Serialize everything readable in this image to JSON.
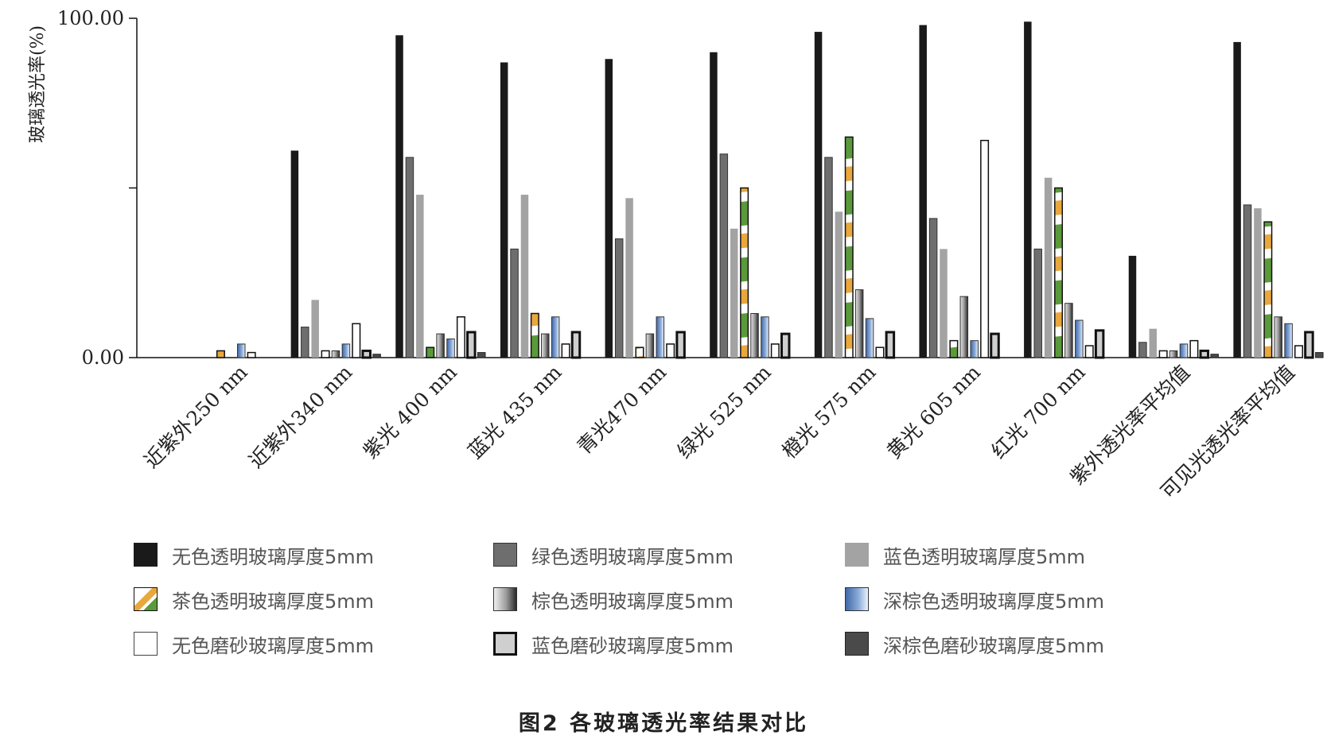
{
  "chart_data": {
    "type": "bar",
    "title": "",
    "xlabel": "",
    "ylabel": "玻璃透光率(%)",
    "ylim": [
      0,
      100
    ],
    "ytick_labels": [
      "0.00",
      "100.00"
    ],
    "grid": false,
    "categories": [
      "近紫外250 nm",
      "近紫外340 nm",
      "紫光 400 nm",
      "蓝光 435 nm",
      "青光470 nm",
      "绿光 525 nm",
      "橙光 575 nm",
      "黄光 605 nm",
      "红光 700 nm",
      "紫外透光率平均值",
      "可见光透光率平均值"
    ],
    "series": [
      {
        "name": "无色透明玻璃厚度5mm",
        "color": "#1a1a1a",
        "values": [
          0,
          61,
          95,
          87,
          88,
          90,
          96,
          98,
          99,
          30,
          93
        ]
      },
      {
        "name": "绿色透明玻璃厚度5mm",
        "color": "#6e6e6e",
        "values": [
          0,
          9,
          59,
          32,
          35,
          60,
          59,
          41,
          32,
          4.5,
          45
        ]
      },
      {
        "name": "蓝色透明玻璃厚度5mm",
        "color": "#a3a3a3",
        "values": [
          0,
          17,
          48,
          48,
          47,
          38,
          43,
          32,
          53,
          8.5,
          44
        ]
      },
      {
        "name": "茶色透明玻璃厚度5mm",
        "color": "#5a9a3a",
        "values": [
          2,
          2,
          3,
          13,
          3,
          50,
          65,
          5,
          50,
          2,
          40
        ]
      },
      {
        "name": "棕色透明玻璃厚度5mm",
        "color": "#8a8a8a",
        "values": [
          0,
          2,
          7,
          7,
          7,
          13,
          20,
          18,
          16,
          2,
          12
        ]
      },
      {
        "name": "深棕色透明玻璃厚度5mm",
        "color": "#6f93c9",
        "values": [
          4,
          4,
          5.5,
          12,
          12,
          12,
          11.5,
          5,
          11,
          4,
          10
        ]
      },
      {
        "name": "无色磨砂玻璃厚度5mm",
        "color": "#ffffff",
        "values": [
          1.5,
          10,
          12,
          4,
          4,
          4,
          3,
          64,
          3.5,
          5,
          3.5
        ]
      },
      {
        "name": "蓝色磨砂玻璃厚度5mm",
        "color": "#cfcfcf",
        "values": [
          0,
          2,
          7.5,
          7.5,
          7.5,
          7,
          7.5,
          7,
          8,
          2,
          7.5
        ]
      },
      {
        "name": "深棕色磨砂玻璃厚度5mm",
        "color": "#4a4a4a",
        "values": [
          0,
          1,
          1.5,
          0,
          0,
          0,
          0,
          0,
          0,
          1,
          1.5
        ]
      }
    ],
    "legend_position": "bottom"
  },
  "caption": "图2   各玻璃透光率结果对比"
}
